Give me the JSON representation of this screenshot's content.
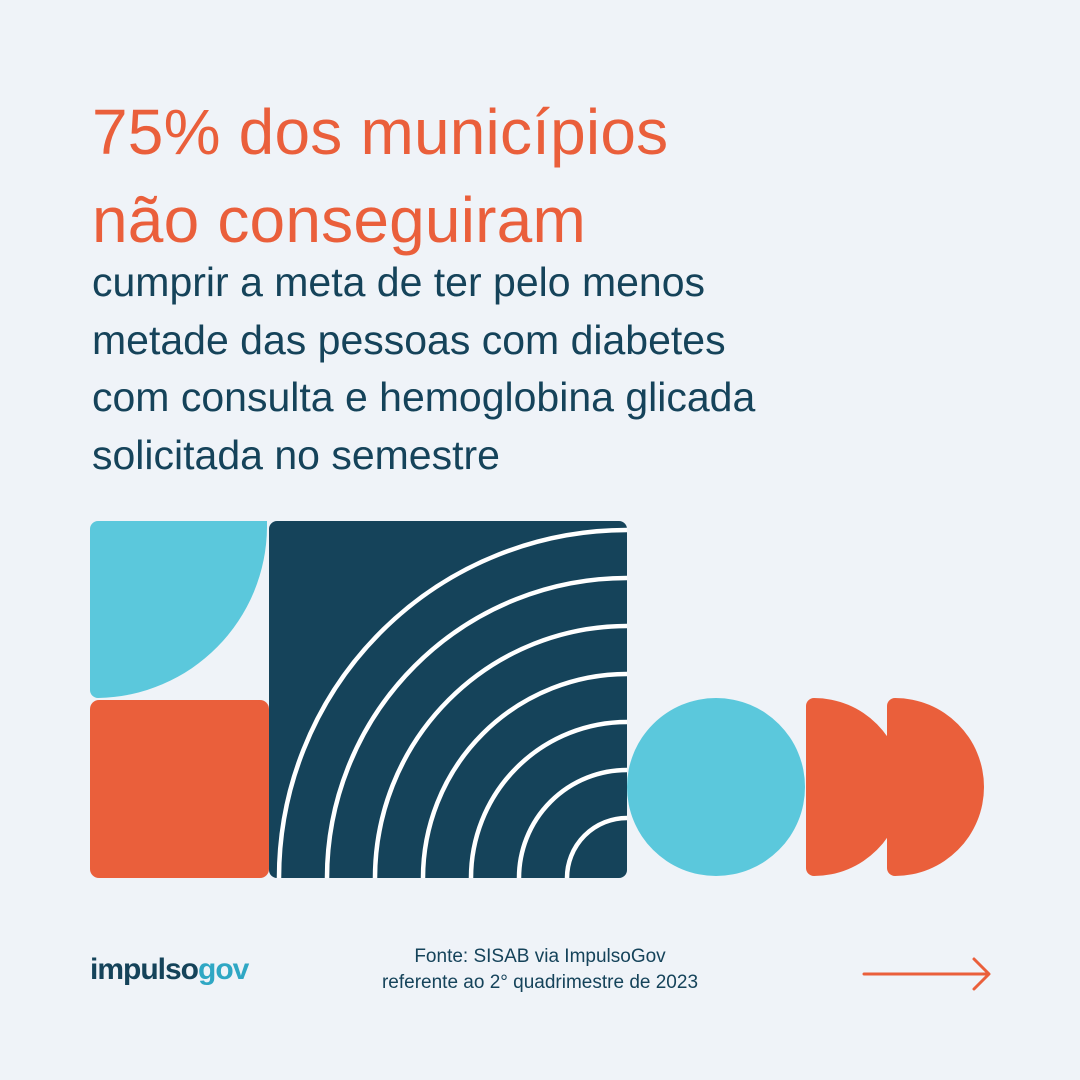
{
  "headline": {
    "line1": "75% dos municípios",
    "line2": "não conseguiram"
  },
  "body": {
    "lines": [
      "cumprir a meta de ter pelo menos",
      "metade das pessoas com diabetes",
      "com consulta e hemoglobina glicada",
      "solicitada no semestre"
    ]
  },
  "source": {
    "line1": "Fonte: SISAB via ImpulsoGov",
    "line2": "referente ao 2° quadrimestre de 2023"
  },
  "logo": {
    "part1": "impulso",
    "part2": "gov"
  },
  "colors": {
    "background": "#eff3f8",
    "orange": "#ea5f3b",
    "navy": "#15435a",
    "cyan": "#5bc8dc"
  },
  "icons": {
    "next": "arrow-right-icon"
  }
}
